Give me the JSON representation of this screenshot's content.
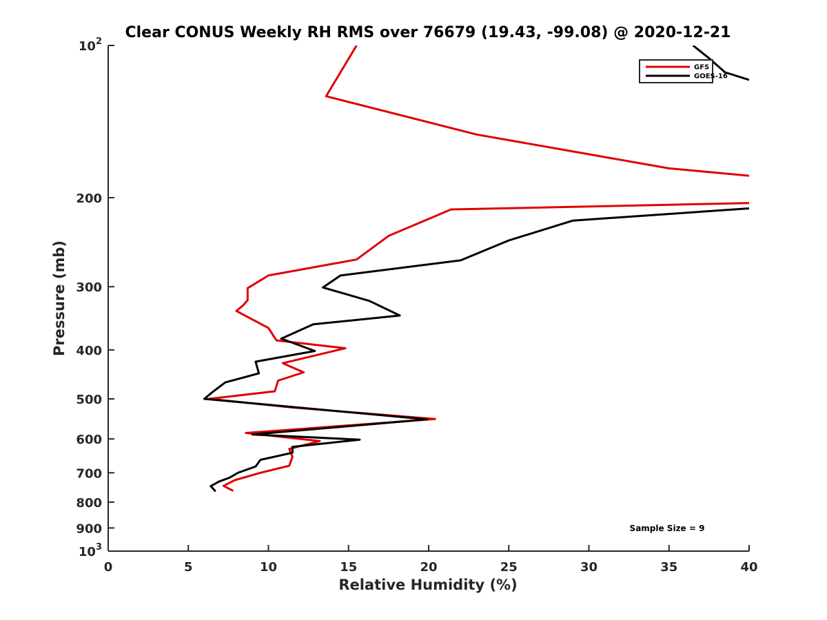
{
  "chart_data": {
    "type": "line",
    "title": "Clear CONUS Weekly RH RMS over 76679 (19.43, -99.08) @ 2020-12-21",
    "xlabel": "Relative Humidity (%)",
    "ylabel": "Pressure (mb)",
    "xlim": [
      0,
      40
    ],
    "ylim": [
      100,
      1000
    ],
    "yscale": "log",
    "y_reversed": true,
    "grid": false,
    "legend_position": "top-right",
    "x_ticks": [
      "0",
      "5",
      "10",
      "15",
      "20",
      "25",
      "30",
      "35",
      "40"
    ],
    "x_tick_values": [
      0,
      5,
      10,
      15,
      20,
      25,
      30,
      35,
      40
    ],
    "y_ticks": [
      {
        "value": 100,
        "base": "10",
        "exp": "2",
        "label": ""
      },
      {
        "value": 200,
        "label": "200"
      },
      {
        "value": 300,
        "label": "300"
      },
      {
        "value": 400,
        "label": "400"
      },
      {
        "value": 500,
        "label": "500"
      },
      {
        "value": 600,
        "label": "600"
      },
      {
        "value": 700,
        "label": "700"
      },
      {
        "value": 800,
        "label": "800"
      },
      {
        "value": 900,
        "label": "900"
      },
      {
        "value": 1000,
        "base": "10",
        "exp": "3",
        "label": ""
      }
    ],
    "annotation": "Sample Size = 9",
    "series": [
      {
        "name": "GFS",
        "color": "#e00000",
        "points": [
          [
            15.5,
            100
          ],
          [
            13.6,
            126
          ],
          [
            23,
            150
          ],
          [
            35,
            175
          ],
          [
            40,
            181
          ]
        ],
        "segments": [
          [
            [
              15.5,
              100
            ],
            [
              13.6,
              126
            ],
            [
              23,
              150
            ],
            [
              35,
              175
            ],
            [
              40,
              181
            ]
          ],
          [
            [
              40,
              205
            ],
            [
              21.4,
              211
            ],
            [
              17.5,
              238
            ],
            [
              15.5,
              265
            ],
            [
              10,
              285
            ],
            [
              8.7,
              302
            ],
            [
              8.7,
              319
            ],
            [
              8.4,
              327
            ],
            [
              8,
              335
            ],
            [
              10,
              362
            ],
            [
              10.5,
              383
            ],
            [
              14.8,
              397
            ],
            [
              10.9,
              425
            ],
            [
              12.2,
              443
            ],
            [
              10.6,
              460
            ],
            [
              10.4,
              483
            ],
            [
              6.3,
              500
            ],
            [
              11.5,
              520
            ],
            [
              20.4,
              548
            ],
            [
              8.6,
              584
            ],
            [
              13.2,
              606
            ],
            [
              11.3,
              628
            ],
            [
              11.5,
              651
            ],
            [
              11.3,
              678
            ],
            [
              9.5,
              700
            ],
            [
              7.9,
              724
            ],
            [
              7.2,
              743
            ],
            [
              7.8,
              760
            ]
          ]
        ]
      },
      {
        "name": "GOES-16",
        "color": "#000000",
        "segments": [
          [
            [
              36.5,
              100
            ],
            [
              37.5,
              106
            ],
            [
              38.5,
              113
            ],
            [
              40,
              117
            ]
          ],
          [
            [
              40,
              210
            ],
            [
              29,
              222
            ],
            [
              25,
              243
            ],
            [
              22,
              266
            ],
            [
              14.5,
              285
            ],
            [
              13.4,
              301
            ],
            [
              16.3,
              320
            ],
            [
              18.2,
              342
            ],
            [
              12.8,
              356
            ],
            [
              10.8,
              380
            ],
            [
              12.9,
              402
            ],
            [
              9.2,
              422
            ],
            [
              9.4,
              445
            ],
            [
              7.3,
              464
            ],
            [
              6.5,
              485
            ],
            [
              6,
              500
            ],
            [
              19.9,
              549
            ],
            [
              9,
              588
            ],
            [
              15.7,
              602
            ],
            [
              11.5,
              622
            ],
            [
              11.5,
              639
            ],
            [
              9.5,
              660
            ],
            [
              9.2,
              680
            ],
            [
              8.1,
              700
            ],
            [
              7.6,
              715
            ],
            [
              6.9,
              729
            ],
            [
              6.4,
              744
            ],
            [
              6.7,
              762
            ]
          ]
        ]
      }
    ]
  }
}
